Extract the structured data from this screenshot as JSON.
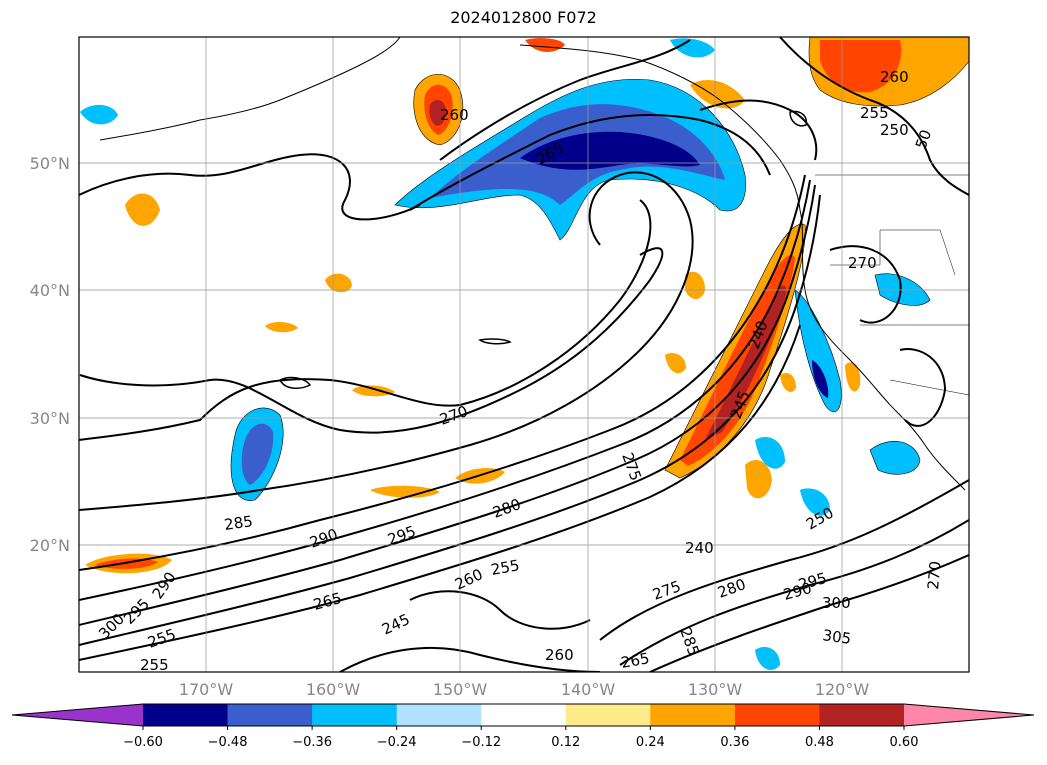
{
  "title": "2024012800 F072",
  "map": {
    "lat_ticks": [
      "50°N",
      "40°N",
      "30°N",
      "20°N"
    ],
    "lon_ticks": [
      "170°W",
      "160°W",
      "150°W",
      "140°W",
      "130°W",
      "120°W"
    ],
    "contour_labels": [
      "260",
      "265",
      "260",
      "255",
      "250",
      "50",
      "270",
      "270",
      "240",
      "245",
      "275",
      "280",
      "285",
      "290",
      "295",
      "290",
      "295",
      "300",
      "260",
      "255",
      "265",
      "245",
      "255",
      "255",
      "260",
      "265",
      "240",
      "275",
      "280",
      "285",
      "290",
      "295",
      "300",
      "305",
      "250",
      "270"
    ]
  },
  "colorbar": {
    "ticks": [
      "−0.60",
      "−0.48",
      "−0.36",
      "−0.24",
      "−0.12",
      "0.12",
      "0.24",
      "0.36",
      "0.48",
      "0.60"
    ],
    "colors": [
      "#9933cc",
      "#00008b",
      "#3a5fcd",
      "#00bfff",
      "#b0e2ff",
      "#ffffff",
      "#ffeb8a",
      "#ffa500",
      "#ff4500",
      "#b22222",
      "#ff85a9"
    ]
  }
}
